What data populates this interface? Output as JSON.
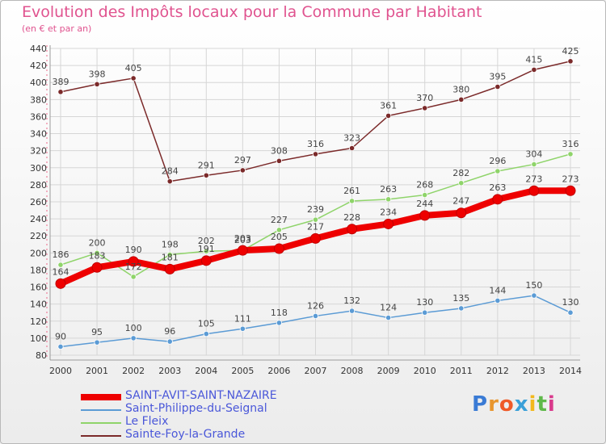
{
  "chart_data": {
    "type": "line",
    "title": "Evolution des Impôts locaux pour la Commune par Habitant",
    "subtitle": "(en € et par an)",
    "x": [
      "2000",
      "2001",
      "2002",
      "2003",
      "2004",
      "2005",
      "2006",
      "2007",
      "2008",
      "2009",
      "2010",
      "2011",
      "2012",
      "2013",
      "2014"
    ],
    "ylim": [
      80,
      440
    ],
    "yticks": [
      80,
      100,
      120,
      140,
      160,
      180,
      200,
      220,
      240,
      260,
      280,
      300,
      320,
      340,
      360,
      380,
      400,
      420,
      440
    ],
    "grid": true,
    "legend_position": "bottom-left",
    "series": [
      {
        "name": "Sainte-Foy-la-Grande",
        "color": "#7b2a2a",
        "values": [
          389,
          398,
          405,
          284,
          291,
          297,
          308,
          316,
          323,
          361,
          370,
          380,
          395,
          415,
          425
        ]
      },
      {
        "name": "Le Fleix",
        "color": "#8fd46a",
        "values": [
          186,
          200,
          172,
          198,
          202,
          203,
          227,
          239,
          261,
          263,
          268,
          282,
          296,
          304,
          316
        ]
      },
      {
        "name": "Saint-Philippe-du-Seignal",
        "color": "#5b9bd5",
        "values": [
          90,
          95,
          100,
          96,
          105,
          111,
          118,
          126,
          132,
          124,
          130,
          135,
          144,
          150,
          130
        ]
      },
      {
        "name": "SAINT-AVIT-SAINT-NAZAIRE",
        "color": "#ee0000",
        "values": [
          164,
          183,
          190,
          181,
          191,
          203,
          205,
          217,
          228,
          234,
          244,
          247,
          263,
          273,
          273
        ]
      }
    ]
  },
  "legend": [
    {
      "label": "SAINT-AVIT-SAINT-NAZAIRE",
      "color": "#ee0000"
    },
    {
      "label": "Saint-Philippe-du-Seignal",
      "color": "#5b9bd5"
    },
    {
      "label": "Le Fleix",
      "color": "#8fd46a"
    },
    {
      "label": "Sainte-Foy-la-Grande",
      "color": "#7b2a2a"
    }
  ],
  "logo": {
    "letters": [
      "P",
      "r",
      "o",
      "x",
      "i",
      "t",
      "i"
    ],
    "colors": [
      "#3a7bd5",
      "#e8962e",
      "#ef5a28",
      "#3aa0d8",
      "#f2b81c",
      "#5fb94a",
      "#d93a8c"
    ]
  }
}
